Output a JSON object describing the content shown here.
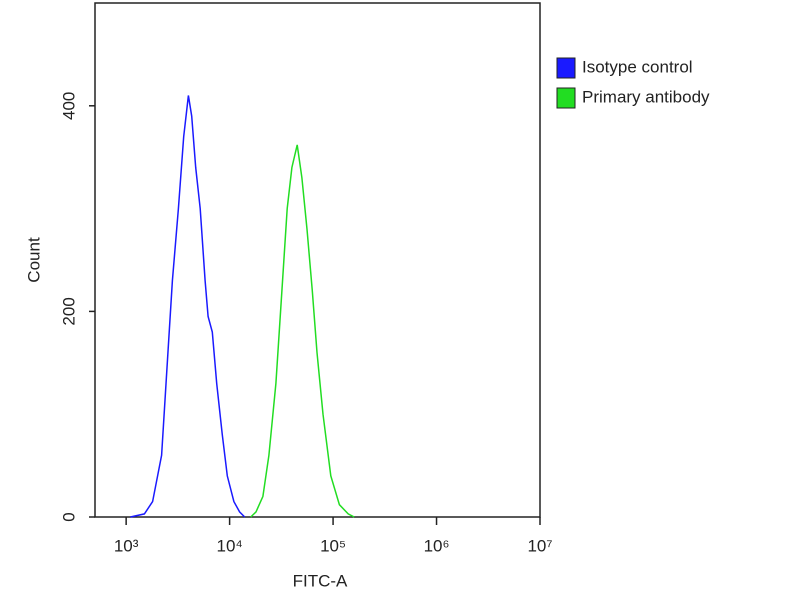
{
  "chart_data": {
    "type": "line",
    "xlabel": "FITC-A",
    "ylabel": "Count",
    "xscale": "log",
    "xlim": [
      500,
      10000000
    ],
    "ylim": [
      0,
      500
    ],
    "xticks": [
      {
        "value": 1000,
        "label": "10³"
      },
      {
        "value": 10000,
        "label": "10⁴"
      },
      {
        "value": 100000,
        "label": "10⁵"
      },
      {
        "value": 1000000,
        "label": "10⁶"
      },
      {
        "value": 10000000,
        "label": "10⁷"
      }
    ],
    "yticks": [
      0,
      200,
      400
    ],
    "legend": "outside-right",
    "series": [
      {
        "name": "Isotype control",
        "color": "#1a1aff",
        "x": [
          1100,
          1500,
          1800,
          2200,
          2500,
          2800,
          3200,
          3600,
          4000,
          4300,
          4700,
          5200,
          5800,
          6200,
          6800,
          7500,
          8500,
          9500,
          11000,
          12500,
          14000
        ],
        "values": [
          0,
          3,
          15,
          60,
          150,
          230,
          300,
          370,
          410,
          390,
          340,
          300,
          230,
          195,
          180,
          130,
          80,
          40,
          15,
          5,
          0
        ]
      },
      {
        "name": "Primary antibody",
        "color": "#22dd22",
        "x": [
          16000,
          18000,
          21000,
          24000,
          28000,
          32000,
          36000,
          40000,
          45000,
          50000,
          56000,
          63000,
          70000,
          80000,
          95000,
          115000,
          140000,
          160000
        ],
        "values": [
          0,
          5,
          20,
          60,
          130,
          220,
          300,
          340,
          362,
          330,
          280,
          220,
          160,
          100,
          40,
          12,
          3,
          0
        ]
      }
    ]
  }
}
